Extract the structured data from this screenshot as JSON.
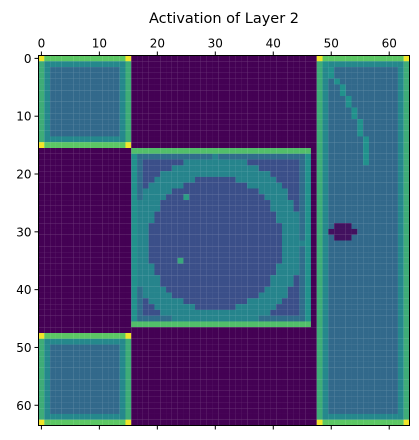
{
  "chart_data": {
    "type": "heatmap",
    "title": "Activation of Layer 2",
    "xlabel": "",
    "ylabel": "",
    "grid_size": 64,
    "x_axis_position": "top",
    "xlim": [
      -0.5,
      63.5
    ],
    "ylim": [
      63.5,
      -0.5
    ],
    "x_ticks": [
      0,
      10,
      20,
      30,
      40,
      50,
      60
    ],
    "y_ticks": [
      0,
      10,
      20,
      30,
      40,
      50,
      60
    ],
    "x_tick_labels": [
      "0",
      "10",
      "20",
      "30",
      "40",
      "50",
      "60"
    ],
    "y_tick_labels": [
      "0",
      "10",
      "20",
      "30",
      "40",
      "50",
      "60"
    ],
    "colormap": [
      "#440154",
      "#3b528b",
      "#21918c",
      "#5ec962",
      "#fde725"
    ],
    "value_range": [
      0,
      1
    ],
    "background_value": 0,
    "regions": [
      {
        "kind": "box",
        "x0": 0,
        "y0": 0,
        "x1": 15,
        "y1": 15,
        "fill": 0.34,
        "edge": 0.62,
        "top_edge": 0.74,
        "corner": 0.98
      },
      {
        "kind": "box",
        "x0": 0,
        "y0": 48,
        "x1": 15,
        "y1": 63,
        "fill": 0.34,
        "edge": 0.62,
        "top_edge": 0.74,
        "corner": 0.98
      },
      {
        "kind": "box",
        "x0": 48,
        "y0": 0,
        "x1": 63,
        "y1": 63,
        "fill": 0.34,
        "edge": 0.62,
        "top_edge": 0.74,
        "corner": 0.98
      },
      {
        "kind": "curve",
        "x0": 49,
        "y0": 1,
        "x1": 56,
        "y1": 18,
        "value": 0.5
      },
      {
        "kind": "box",
        "x0": 16,
        "y0": 16,
        "x1": 46,
        "y1": 46,
        "fill": 0.24,
        "edge": 0.5,
        "top_edge": 0.7,
        "corner": 0.7
      },
      {
        "kind": "ring",
        "cx": 30,
        "cy": 32,
        "r_in": 11.5,
        "r_out": 15,
        "value": 0.45
      },
      {
        "kind": "blob",
        "cx": 25,
        "cy": 24,
        "r": 0.8,
        "value": 0.55
      },
      {
        "kind": "blob",
        "cx": 24,
        "cy": 35,
        "r": 0.8,
        "value": 0.6
      },
      {
        "kind": "dark_blob",
        "cx": 52,
        "cy": 30,
        "rx": 2.2,
        "ry": 1.2,
        "value": 0.05
      }
    ]
  }
}
